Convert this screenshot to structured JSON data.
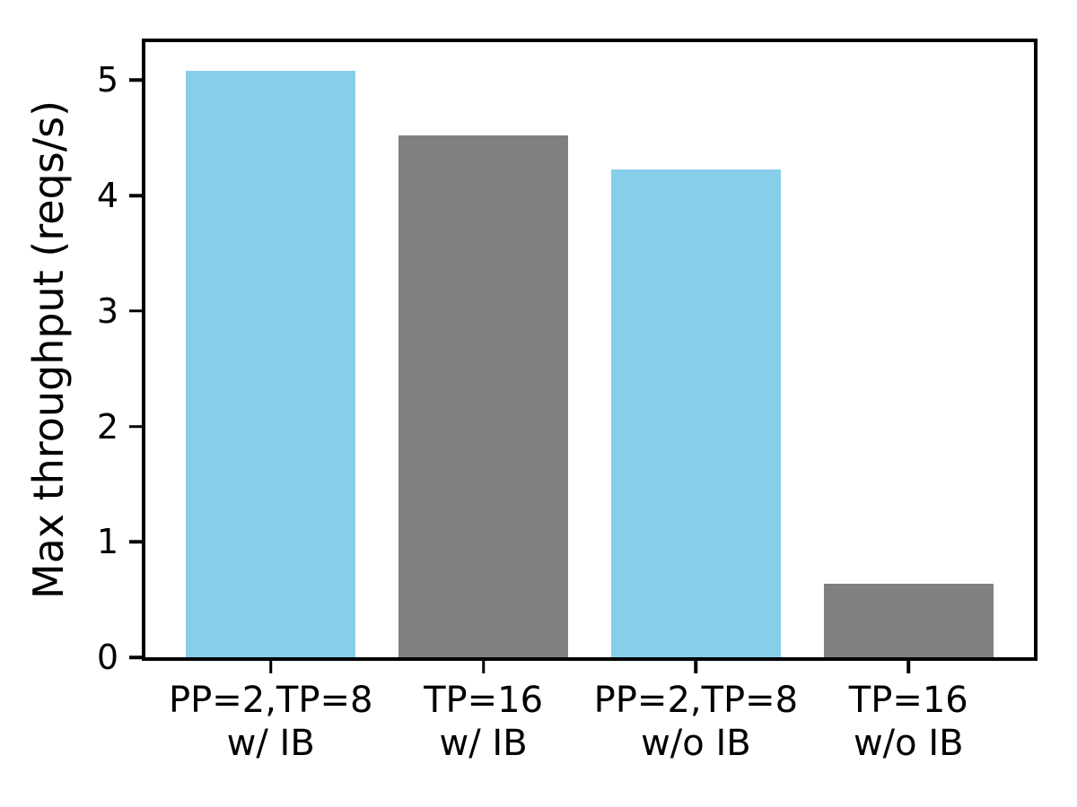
{
  "colors": {
    "bar_blue": "#87ceeb",
    "bar_gray": "#808080",
    "axis": "#000000",
    "text": "#000000",
    "background": "#ffffff"
  },
  "chart_data": {
    "type": "bar",
    "title": "",
    "xlabel": "",
    "ylabel": "Max throughput (reqs/s)",
    "categories": [
      [
        "PP=2,TP=8",
        "w/ IB"
      ],
      [
        "TP=16",
        "w/ IB"
      ],
      [
        "PP=2,TP=8",
        "w/o IB"
      ],
      [
        "TP=16",
        "w/o IB"
      ]
    ],
    "values": [
      5.08,
      4.52,
      4.23,
      0.64
    ],
    "bar_colors": [
      "#87ceeb",
      "#808080",
      "#87ceeb",
      "#808080"
    ],
    "yticks": [
      0,
      1,
      2,
      3,
      4,
      5
    ],
    "ylim": [
      0,
      5.33
    ],
    "xlim": [
      -0.59,
      3.59
    ],
    "bar_width": 0.8,
    "grid": false,
    "legend": null
  }
}
